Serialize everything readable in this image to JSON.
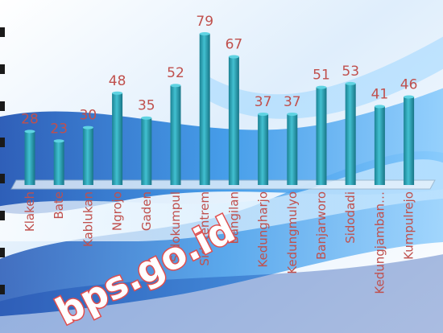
{
  "chart_data": {
    "type": "bar",
    "categories": [
      "Klakeh",
      "Bate",
      "Kablukan",
      "Ngrojo",
      "Gaden",
      "Sidokumpul",
      "Sidotentrem",
      "Bangilan",
      "Kedungharjo",
      "Kedungmulyo",
      "Banjarworo",
      "Sidodadi",
      "Kedungjamban…",
      "Kumpulrejo"
    ],
    "values": [
      28,
      23,
      30,
      48,
      35,
      52,
      79,
      67,
      37,
      37,
      51,
      53,
      41,
      46
    ],
    "title": "",
    "xlabel": "",
    "ylabel": "",
    "ylim": [
      0,
      85
    ],
    "grid": false,
    "legend": "none"
  },
  "watermark": "bps.go.id",
  "colors": {
    "bar": "#2aa6b8",
    "bar_dark": "#1a7d8c",
    "label": "#c0504d",
    "background_blue": "#1e73d6"
  }
}
